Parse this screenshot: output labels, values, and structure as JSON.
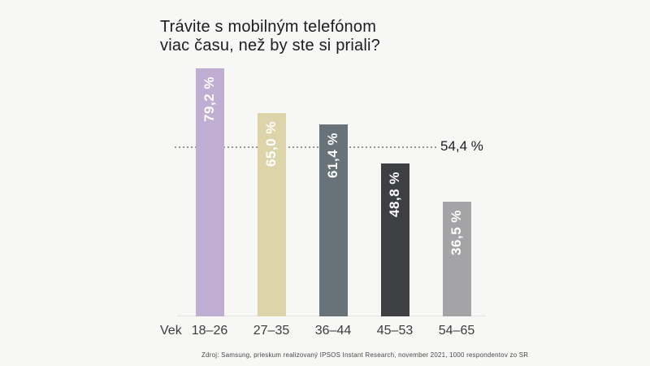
{
  "chart_data": {
    "type": "bar",
    "title": "Trávite s mobilným telefónom\nviac času, než by ste si priali?",
    "xlabel": "Vek",
    "ylabel": "",
    "ylim": [
      0,
      100
    ],
    "grid": false,
    "legend": "none",
    "categories": [
      "18–26",
      "27–35",
      "36–44",
      "45–53",
      "54–65"
    ],
    "values": [
      79.2,
      65.0,
      61.4,
      48.8,
      36.5
    ],
    "value_labels": [
      "79,2 %",
      "65,0 %",
      "61,4 %",
      "48,8 %",
      "36,5 %"
    ],
    "bar_colors": [
      "#bfaed2",
      "#ddd4a9",
      "#687379",
      "#3d3f42",
      "#a4a3a5"
    ],
    "reference_line": {
      "value": 54.4,
      "label": "54,4 %",
      "style": "dotted"
    }
  },
  "footer": {
    "source": "Zdroj: Samsung, prieskum realizovaný IPSOS Instant Research, november 2021, 1000 respondentov zo SR"
  },
  "colors": {
    "bg": "#f7f7f6",
    "title_color": "#1d1d1f",
    "tick_color": "#3c3c3c",
    "value_color": "#ffffff",
    "ref_color": "#949494",
    "baseline_color": "#e4e2df",
    "footer_color": "#4a4a4a"
  }
}
